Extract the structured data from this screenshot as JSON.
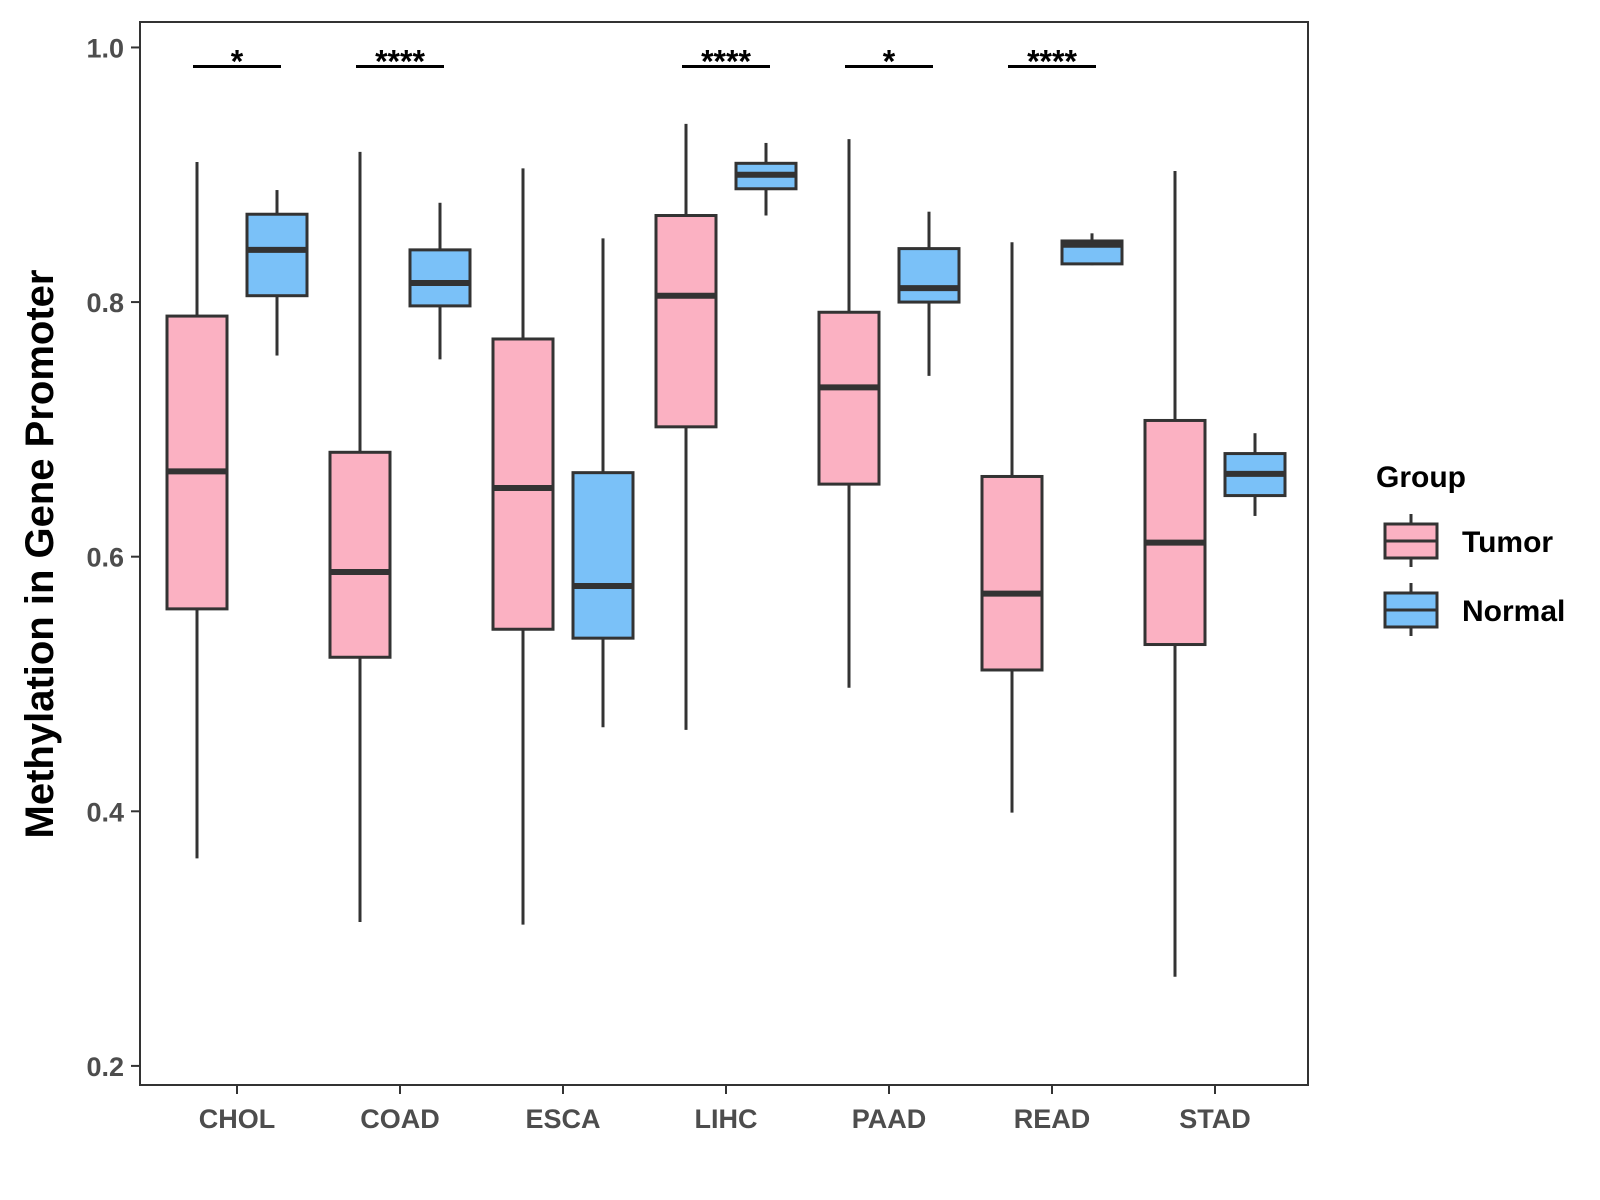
{
  "chart_data": {
    "type": "boxplot",
    "title": "",
    "xlabel": "",
    "ylabel": "Methylation in Gene Promoter",
    "ylim": [
      0.185,
      1.02
    ],
    "yticks": [
      0.2,
      0.4,
      0.6,
      0.8,
      1.0
    ],
    "ytick_labels": [
      "0.2",
      "0.4",
      "0.6",
      "0.8",
      "1.0"
    ],
    "categories": [
      "CHOL",
      "COAD",
      "ESCA",
      "LIHC",
      "PAAD",
      "READ",
      "STAD"
    ],
    "legend": {
      "title": "Group",
      "position": "right"
    },
    "series": [
      {
        "name": "Tumor",
        "color": "#FBB1C2",
        "boxes": [
          {
            "min": 0.363,
            "q1": 0.559,
            "median": 0.667,
            "q3": 0.789,
            "max": 0.91
          },
          {
            "min": 0.313,
            "q1": 0.521,
            "median": 0.588,
            "q3": 0.682,
            "max": 0.918
          },
          {
            "min": 0.311,
            "q1": 0.543,
            "median": 0.654,
            "q3": 0.771,
            "max": 0.905
          },
          {
            "min": 0.464,
            "q1": 0.702,
            "median": 0.805,
            "q3": 0.868,
            "max": 0.94
          },
          {
            "min": 0.497,
            "q1": 0.657,
            "median": 0.733,
            "q3": 0.792,
            "max": 0.928
          },
          {
            "min": 0.399,
            "q1": 0.511,
            "median": 0.571,
            "q3": 0.663,
            "max": 0.847
          },
          {
            "min": 0.27,
            "q1": 0.531,
            "median": 0.611,
            "q3": 0.707,
            "max": 0.903
          }
        ]
      },
      {
        "name": "Normal",
        "color": "#7AC1F8",
        "boxes": [
          {
            "min": 0.758,
            "q1": 0.805,
            "median": 0.841,
            "q3": 0.869,
            "max": 0.888
          },
          {
            "min": 0.755,
            "q1": 0.797,
            "median": 0.815,
            "q3": 0.841,
            "max": 0.878
          },
          {
            "min": 0.466,
            "q1": 0.536,
            "median": 0.577,
            "q3": 0.666,
            "max": 0.85
          },
          {
            "min": 0.868,
            "q1": 0.889,
            "median": 0.9,
            "q3": 0.909,
            "max": 0.925
          },
          {
            "min": 0.742,
            "q1": 0.8,
            "median": 0.811,
            "q3": 0.842,
            "max": 0.871
          },
          {
            "min": 0.829,
            "q1": 0.83,
            "median": 0.845,
            "q3": 0.848,
            "max": 0.854
          },
          {
            "min": 0.632,
            "q1": 0.648,
            "median": 0.665,
            "q3": 0.681,
            "max": 0.697
          }
        ]
      }
    ],
    "significance": [
      {
        "category": "CHOL",
        "label": "*",
        "y": 0.985
      },
      {
        "category": "COAD",
        "label": "****",
        "y": 0.985
      },
      {
        "category": "LIHC",
        "label": "****",
        "y": 0.985
      },
      {
        "category": "PAAD",
        "label": "*",
        "y": 0.985
      },
      {
        "category": "READ",
        "label": "****",
        "y": 0.985
      }
    ]
  }
}
